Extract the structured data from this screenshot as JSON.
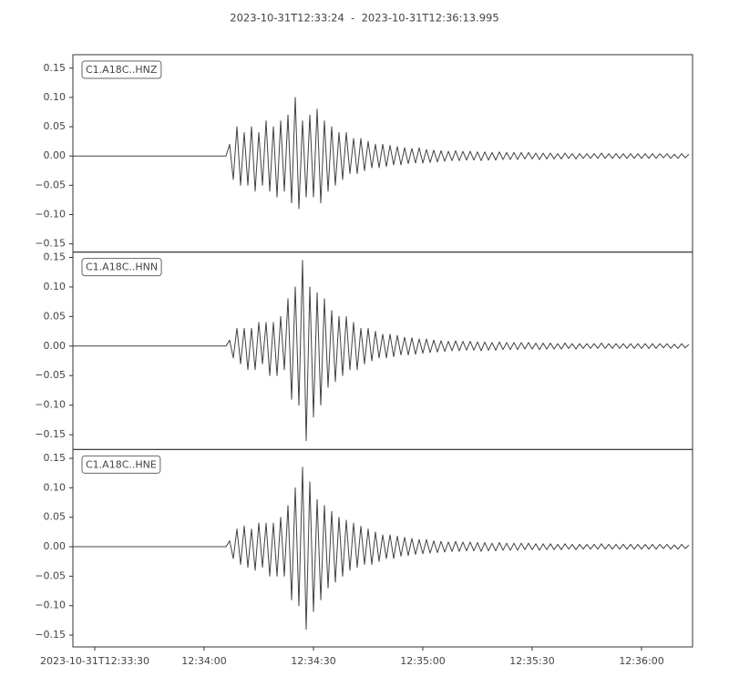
{
  "chart_data": {
    "type": "line",
    "title": "2023-10-31T12:33:24  -  2023-10-31T12:36:13.995",
    "x": [
      0,
      1,
      2,
      3,
      4,
      5,
      6,
      7,
      8,
      9,
      10,
      11,
      12,
      13,
      14,
      15,
      16,
      17,
      18,
      19,
      20,
      21,
      22,
      23,
      24,
      25,
      26,
      27,
      28,
      29,
      30,
      31,
      32,
      33,
      34,
      35,
      36,
      37,
      38,
      39,
      40,
      41,
      42,
      43,
      44,
      45,
      46,
      47,
      48,
      49,
      50,
      51,
      52,
      53,
      54,
      55,
      56,
      57,
      58,
      59,
      60,
      61,
      62,
      63,
      64,
      65,
      66,
      67,
      68,
      69,
      70,
      71,
      72,
      73,
      74,
      75,
      76,
      77,
      78,
      79,
      80,
      81,
      82,
      83,
      84,
      85,
      86,
      87,
      88,
      89,
      90,
      91,
      92,
      93,
      94,
      95,
      96,
      97,
      98,
      99,
      100,
      101,
      102,
      103,
      104,
      105,
      106,
      107,
      108,
      109,
      110,
      111,
      112,
      113,
      114,
      115,
      116,
      117,
      118,
      119,
      120,
      121,
      122,
      123,
      124,
      125,
      126,
      127,
      128,
      129,
      130,
      131,
      132,
      133,
      134,
      135,
      136,
      137,
      138,
      139,
      140,
      141,
      142,
      143,
      144,
      145,
      146,
      147,
      148,
      149,
      150,
      151,
      152,
      153,
      154,
      155,
      156,
      157,
      158,
      159,
      160,
      161,
      162,
      163,
      164,
      165,
      166,
      167,
      168,
      169
    ],
    "xlim": [
      0,
      169.995
    ],
    "xticks": [
      {
        "value": 6,
        "label": "2023-10-31T12:33:30"
      },
      {
        "value": 36,
        "label": "12:34:00"
      },
      {
        "value": 66,
        "label": "12:34:30"
      },
      {
        "value": 96,
        "label": "12:35:00"
      },
      {
        "value": 126,
        "label": "12:35:30"
      },
      {
        "value": 156,
        "label": "12:36:00"
      }
    ],
    "yticks": [
      0.15,
      {
        "value": 0.1,
        "label": "0.10"
      },
      0.05,
      {
        "value": 0,
        "label": "0.00"
      },
      {
        "value": -0.05,
        "label": "−0.05"
      },
      {
        "value": -0.1,
        "label": "−0.10"
      },
      {
        "value": -0.15,
        "label": "−0.15"
      }
    ],
    "series": [
      {
        "name": "C1.A18C..HNZ",
        "color": "#424242",
        "ylim": [
          -0.164,
          0.173
        ],
        "values": [
          0,
          0,
          0,
          0,
          0,
          0,
          0,
          0,
          0,
          0,
          0,
          0,
          0,
          0,
          0,
          0,
          0,
          0,
          0,
          0,
          0,
          0,
          0,
          0,
          0,
          0,
          0,
          0,
          0,
          0,
          0,
          0,
          0,
          0,
          0,
          0,
          0,
          0,
          0,
          0,
          0,
          0,
          0,
          0.02,
          -0.04,
          0.05,
          -0.05,
          0.04,
          -0.05,
          0.05,
          -0.06,
          0.04,
          -0.05,
          0.06,
          -0.06,
          0.05,
          -0.07,
          0.06,
          -0.06,
          0.07,
          -0.08,
          0.1,
          -0.09,
          0.06,
          -0.07,
          0.07,
          -0.07,
          0.08,
          -0.08,
          0.06,
          -0.06,
          0.05,
          -0.05,
          0.04,
          -0.04,
          0.04,
          -0.03,
          0.03,
          -0.03,
          0.03,
          -0.025,
          0.025,
          -0.02,
          0.02,
          -0.02,
          0.02,
          -0.018,
          0.018,
          -0.015,
          0.016,
          -0.015,
          0.014,
          -0.013,
          0.013,
          -0.012,
          0.014,
          -0.012,
          0.011,
          -0.011,
          0.01,
          -0.01,
          0.009,
          -0.009,
          0.008,
          -0.008,
          0.009,
          -0.008,
          0.008,
          -0.007,
          0.008,
          -0.007,
          0.007,
          -0.008,
          0.007,
          -0.007,
          0.006,
          -0.007,
          0.007,
          -0.006,
          0.006,
          -0.006,
          0.006,
          -0.006,
          0.006,
          -0.005,
          0.006,
          -0.005,
          0.005,
          -0.006,
          0.005,
          -0.005,
          0.005,
          -0.005,
          0.004,
          -0.005,
          0.005,
          -0.004,
          0.004,
          -0.005,
          0.004,
          -0.004,
          0.004,
          -0.004,
          0.004,
          -0.004,
          0.005,
          -0.004,
          0.004,
          -0.004,
          0.004,
          -0.004,
          0.004,
          -0.004,
          0.004,
          -0.004,
          0.004,
          -0.004,
          0.004,
          -0.004,
          0.004,
          -0.004,
          0.004,
          -0.003,
          0.004,
          -0.004,
          0.003,
          -0.004,
          0.004,
          -0.003,
          0.003
        ]
      },
      {
        "name": "C1.A18C..HNN",
        "color": "#424242",
        "ylim": [
          -0.175,
          0.159
        ],
        "values": [
          0,
          0,
          0,
          0,
          0,
          0,
          0,
          0,
          0,
          0,
          0,
          0,
          0,
          0,
          0,
          0,
          0,
          0,
          0,
          0,
          0,
          0,
          0,
          0,
          0,
          0,
          0,
          0,
          0,
          0,
          0,
          0,
          0,
          0,
          0,
          0,
          0,
          0,
          0,
          0,
          0,
          0,
          0,
          0.01,
          -0.02,
          0.03,
          -0.03,
          0.03,
          -0.04,
          0.03,
          -0.04,
          0.04,
          -0.03,
          0.04,
          -0.05,
          0.04,
          -0.05,
          0.05,
          -0.04,
          0.08,
          -0.09,
          0.1,
          -0.1,
          0.145,
          -0.16,
          0.1,
          -0.12,
          0.09,
          -0.1,
          0.08,
          -0.07,
          0.06,
          -0.06,
          0.05,
          -0.05,
          0.05,
          -0.04,
          0.04,
          -0.04,
          0.03,
          -0.03,
          0.03,
          -0.025,
          0.025,
          -0.02,
          0.02,
          -0.02,
          0.02,
          -0.018,
          0.018,
          -0.015,
          0.015,
          -0.015,
          0.014,
          -0.014,
          0.012,
          -0.012,
          0.012,
          -0.011,
          0.01,
          -0.01,
          0.009,
          -0.009,
          0.008,
          -0.008,
          0.009,
          -0.008,
          0.008,
          -0.007,
          0.008,
          -0.007,
          0.007,
          -0.008,
          0.007,
          -0.007,
          0.006,
          -0.007,
          0.007,
          -0.006,
          0.006,
          -0.006,
          0.006,
          -0.006,
          0.006,
          -0.005,
          0.006,
          -0.005,
          0.005,
          -0.006,
          0.005,
          -0.005,
          0.005,
          -0.005,
          0.004,
          -0.005,
          0.005,
          -0.004,
          0.004,
          -0.005,
          0.004,
          -0.004,
          0.004,
          -0.004,
          0.004,
          -0.004,
          0.005,
          -0.004,
          0.004,
          -0.004,
          0.004,
          -0.004,
          0.004,
          -0.004,
          0.004,
          -0.004,
          0.004,
          -0.004,
          0.004,
          -0.004,
          0.004,
          -0.004,
          0.004,
          -0.003,
          0.004,
          -0.004,
          0.003,
          -0.004,
          0.004,
          -0.003,
          0.003
        ]
      },
      {
        "name": "C1.A18C..HNE",
        "color": "#424242",
        "ylim": [
          -0.17,
          0.165
        ],
        "values": [
          0,
          0,
          0,
          0,
          0,
          0,
          0,
          0,
          0,
          0,
          0,
          0,
          0,
          0,
          0,
          0,
          0,
          0,
          0,
          0,
          0,
          0,
          0,
          0,
          0,
          0,
          0,
          0,
          0,
          0,
          0,
          0,
          0,
          0,
          0,
          0,
          0,
          0,
          0,
          0,
          0,
          0,
          0,
          0.01,
          -0.02,
          0.03,
          -0.03,
          0.035,
          -0.035,
          0.03,
          -0.04,
          0.04,
          -0.035,
          0.04,
          -0.05,
          0.04,
          -0.05,
          0.05,
          -0.05,
          0.07,
          -0.09,
          0.1,
          -0.1,
          0.135,
          -0.14,
          0.11,
          -0.11,
          0.08,
          -0.09,
          0.07,
          -0.07,
          0.06,
          -0.06,
          0.05,
          -0.05,
          0.045,
          -0.04,
          0.04,
          -0.035,
          0.035,
          -0.03,
          0.03,
          -0.03,
          0.025,
          -0.025,
          0.02,
          -0.02,
          0.02,
          -0.02,
          0.018,
          -0.016,
          0.016,
          -0.015,
          0.014,
          -0.013,
          0.012,
          -0.012,
          0.012,
          -0.011,
          0.01,
          -0.01,
          0.009,
          -0.009,
          0.008,
          -0.008,
          0.009,
          -0.008,
          0.008,
          -0.007,
          0.008,
          -0.007,
          0.007,
          -0.008,
          0.007,
          -0.007,
          0.006,
          -0.007,
          0.007,
          -0.006,
          0.006,
          -0.006,
          0.006,
          -0.006,
          0.006,
          -0.005,
          0.006,
          -0.005,
          0.005,
          -0.006,
          0.005,
          -0.005,
          0.005,
          -0.005,
          0.004,
          -0.005,
          0.005,
          -0.004,
          0.004,
          -0.005,
          0.004,
          -0.004,
          0.004,
          -0.004,
          0.004,
          -0.004,
          0.005,
          -0.004,
          0.004,
          -0.004,
          0.004,
          -0.004,
          0.004,
          -0.004,
          0.004,
          -0.004,
          0.004,
          -0.004,
          0.004,
          -0.004,
          0.004,
          -0.004,
          0.004,
          -0.003,
          0.004,
          -0.004,
          0.003,
          -0.004,
          0.004,
          -0.003,
          0.003
        ]
      }
    ]
  }
}
